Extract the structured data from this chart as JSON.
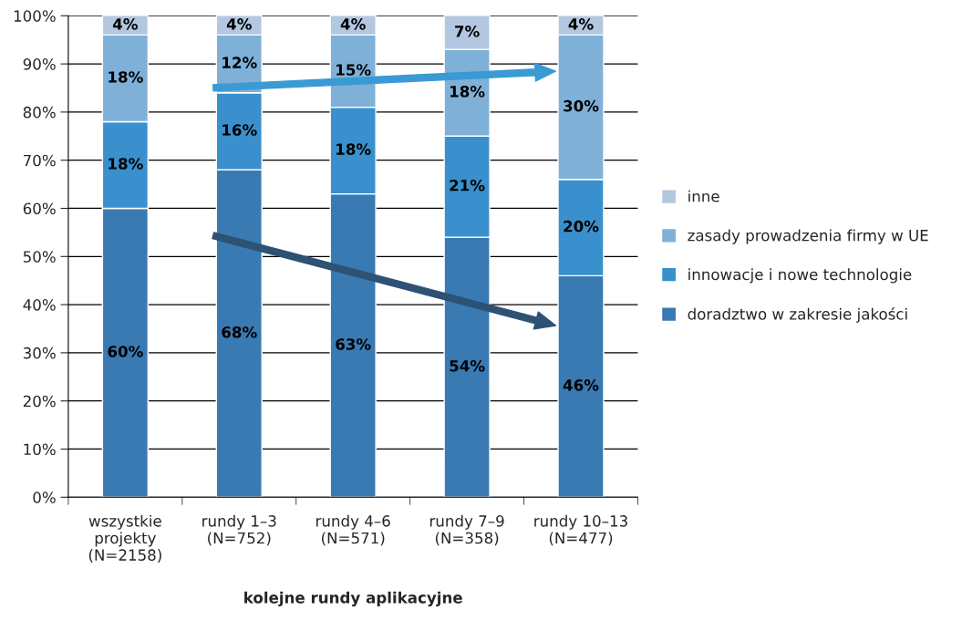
{
  "chart_data": {
    "type": "bar",
    "stacked": true,
    "xlabel": "kolejne rundy aplikacyjne",
    "categories": [
      "wszystkie\nprojekty\n(N=2158)",
      "rundy 1–3\n(N=752)",
      "rundy 4–6\n(N=571)",
      "rundy 7–9\n(N=358)",
      "rundy 10–13\n(N=477)"
    ],
    "series": [
      {
        "name": "doradztwo w zakresie jakości",
        "color": "#3a7ab3",
        "values": [
          60,
          68,
          63,
          54,
          46
        ],
        "value_labels": [
          "60%",
          "68%",
          "63%",
          "54%",
          "46%"
        ]
      },
      {
        "name": "innowacje i nowe technologie",
        "color": "#3a90cc",
        "values": [
          18,
          16,
          18,
          21,
          20
        ],
        "value_labels": [
          "18%",
          "16%",
          "18%",
          "21%",
          "20%"
        ]
      },
      {
        "name": "zasady prowadzenia firmy w UE",
        "color": "#7fb0d8",
        "values": [
          18,
          12,
          15,
          18,
          30
        ],
        "value_labels": [
          "18%",
          "12%",
          "15%",
          "18%",
          "30%"
        ]
      },
      {
        "name": "inne",
        "color": "#b3c8e0",
        "values": [
          4,
          4,
          4,
          7,
          4
        ],
        "value_labels": [
          "4%",
          "4%",
          "4%",
          "7%",
          "4%"
        ]
      }
    ],
    "ylim": [
      0,
      100
    ],
    "yticks": [
      {
        "value": 0,
        "label": "0%"
      },
      {
        "value": 10,
        "label": "10%"
      },
      {
        "value": 20,
        "label": "20%"
      },
      {
        "value": 30,
        "label": "30%"
      },
      {
        "value": 40,
        "label": "40%"
      },
      {
        "value": 50,
        "label": "50%"
      },
      {
        "value": 60,
        "label": "60%"
      },
      {
        "value": 70,
        "label": "70%"
      },
      {
        "value": 80,
        "label": "80%"
      },
      {
        "value": 90,
        "label": "90%"
      },
      {
        "value": 100,
        "label": "100%"
      }
    ],
    "grid": "y",
    "legend": "right"
  }
}
